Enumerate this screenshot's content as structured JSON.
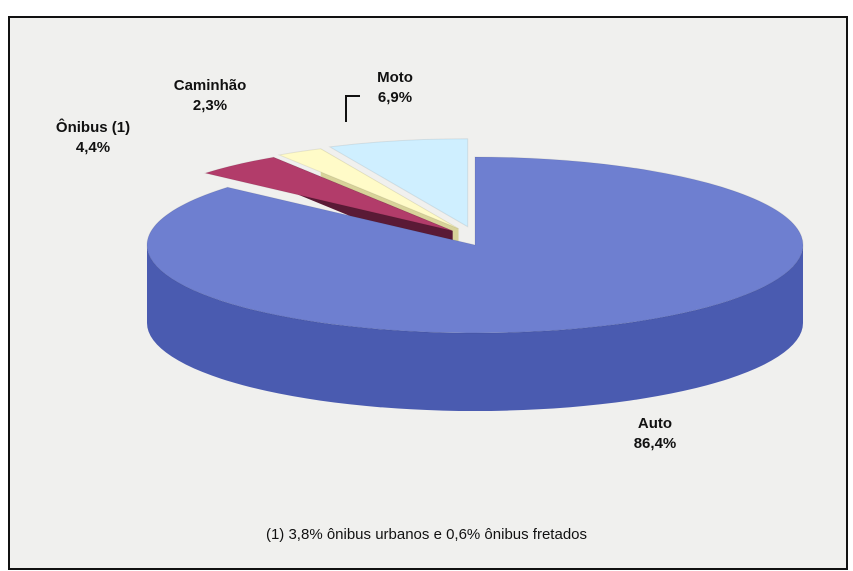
{
  "chart_data": {
    "type": "pie",
    "three_d": true,
    "slices": [
      {
        "label": "Auto",
        "value": 86.4,
        "value_label": "86,4%",
        "color": "#6e7fd0",
        "side_color": "#4a5bb0",
        "exploded": false
      },
      {
        "label": "Ônibus (1)",
        "value": 4.4,
        "value_label": "4,4%",
        "color": "#b23c6a",
        "side_color": "#5a1a36",
        "exploded": true
      },
      {
        "label": "Caminhão",
        "value": 2.3,
        "value_label": "2,3%",
        "color": "#fffbc8",
        "side_color": "#d8d39a",
        "exploded": true
      },
      {
        "label": "Moto",
        "value": 6.9,
        "value_label": "6,9%",
        "color": "#cfefff",
        "side_color": "#8a9aa0",
        "exploded": true
      }
    ],
    "footnote": "(1) 3,8% ônibus urbanos e 0,6% ônibus fretados"
  },
  "colors": {
    "background": "#f0f0ee",
    "border": "#111111"
  }
}
